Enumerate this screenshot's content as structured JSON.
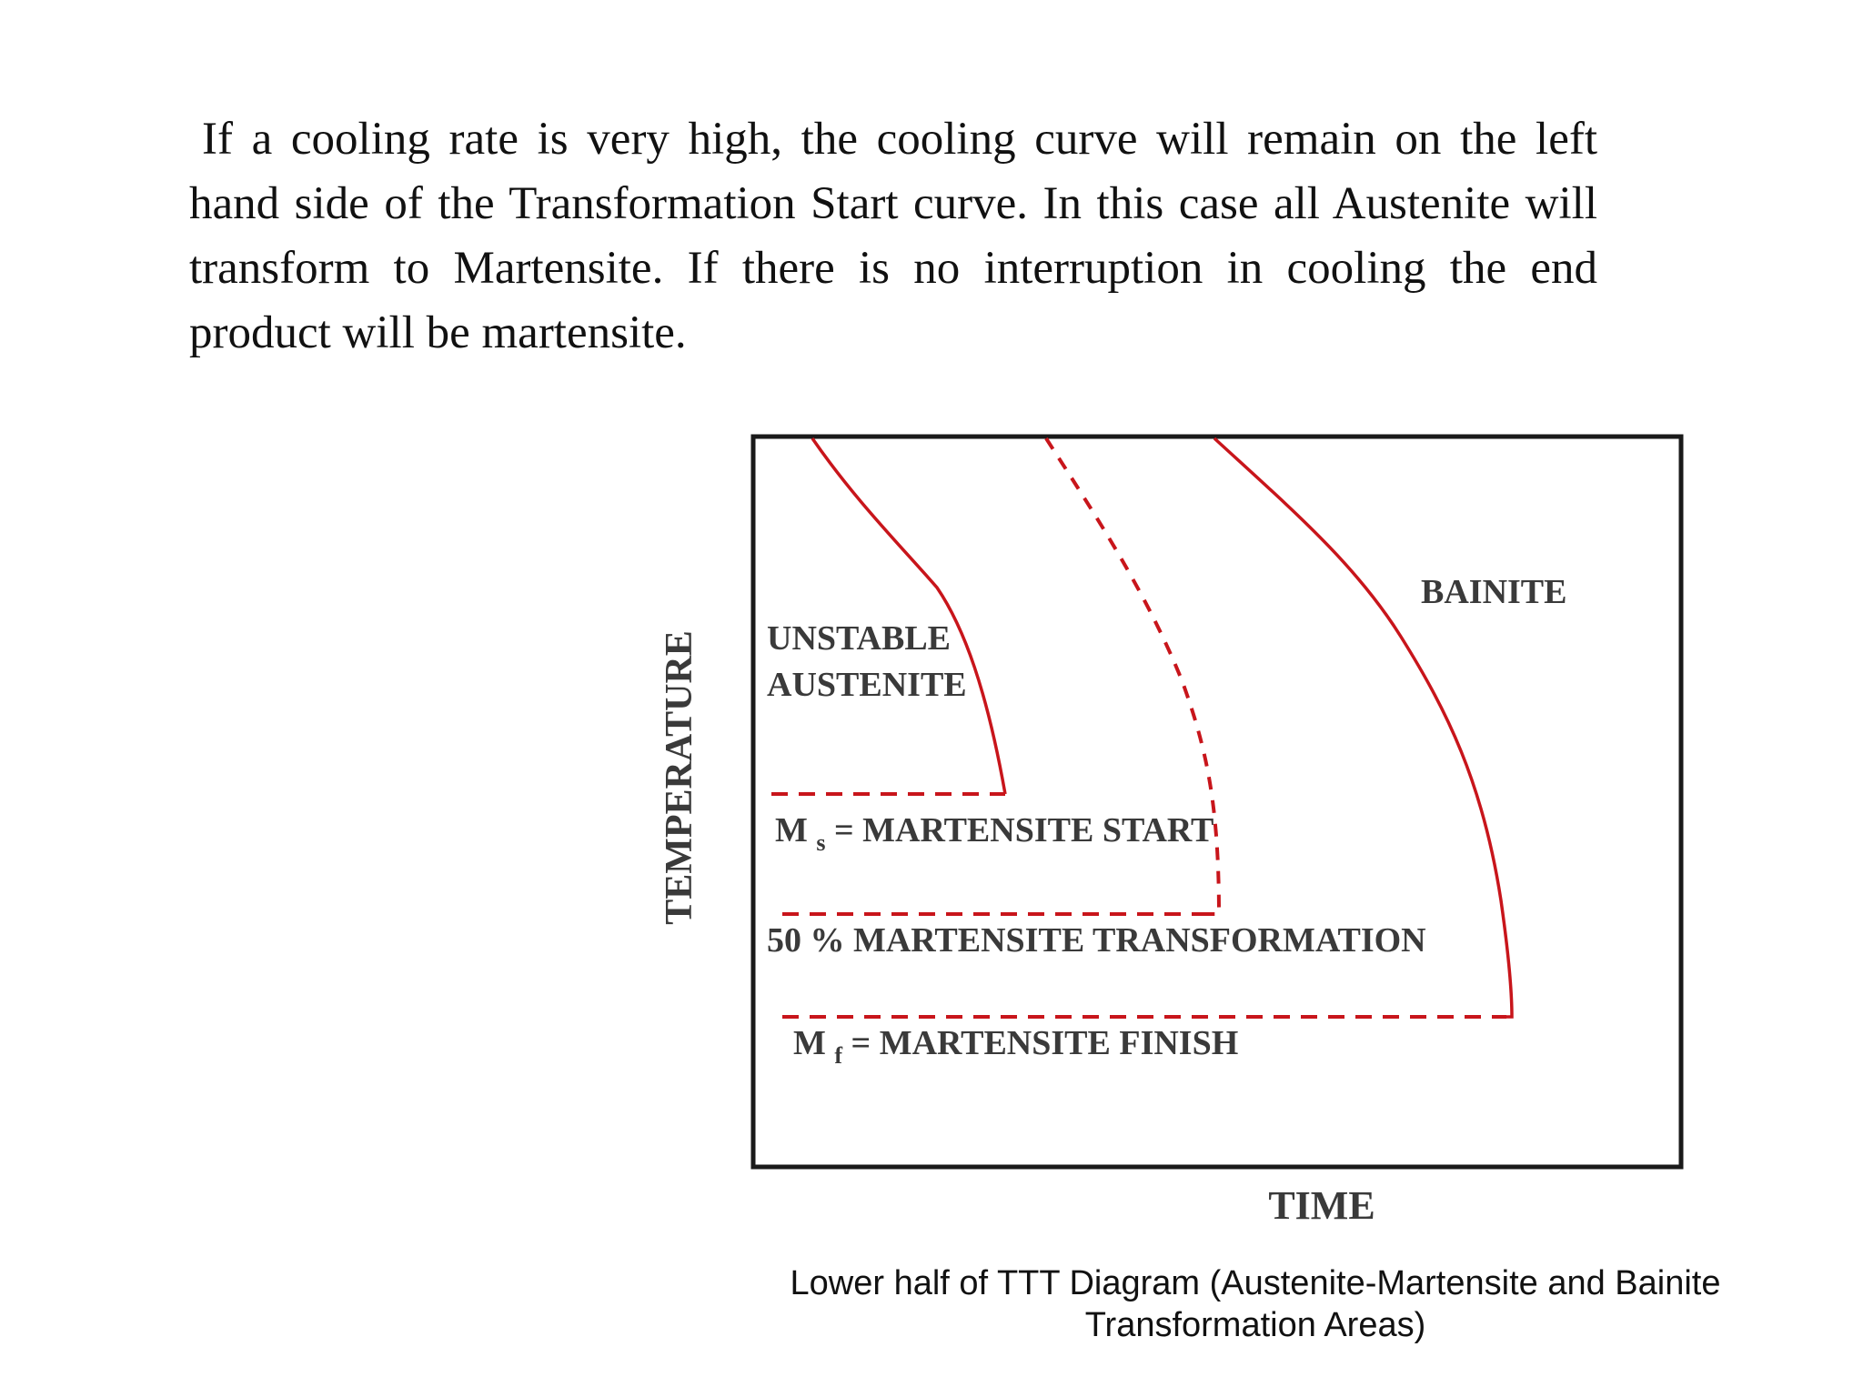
{
  "paragraph": "If a cooling rate is very high, the cooling curve will remain on the left hand side of the Transformation Start curve. In this case all Austenite will transform to Martensite. If there is no interruption in cooling the end product will be martensite.",
  "diagram": {
    "y_axis_label": "TEMPERATURE",
    "x_axis_label": "TIME",
    "region_unstable_line1": "UNSTABLE",
    "region_unstable_line2": "AUSTENITE",
    "region_bainite": "BAINITE",
    "ms_symbol": "M",
    "ms_subscript": "s",
    "ms_text": " = MARTENSITE START",
    "m50_text": "50 %  MARTENSITE TRANSFORMATION",
    "mf_symbol": "M",
    "mf_subscript": "f",
    "mf_text": " = MARTENSITE FINISH",
    "curve_color": "#c8151b",
    "frame_color": "#1a1a1a"
  },
  "caption_line1": "Lower half of TTT Diagram (Austenite-Martensite and Bainite",
  "caption_line2": "Transformation Areas)"
}
